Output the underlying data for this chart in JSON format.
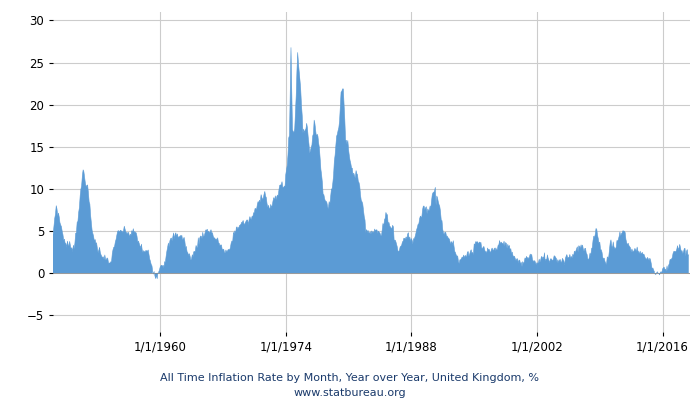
{
  "title_line1": "All Time Inflation Rate by Month, Year over Year, United Kingdom, %",
  "title_line2": "www.statbureau.org",
  "title_color": "#1a3a6b",
  "fill_color": "#5b9bd5",
  "fill_alpha": 1.0,
  "line_color": "#5b9bd5",
  "background_color": "#ffffff",
  "grid_color": "#cccccc",
  "ylim": [
    -7,
    31
  ],
  "yticks": [
    -5,
    0,
    5,
    10,
    15,
    20,
    25,
    30
  ],
  "x_start_year": 1948,
  "x_end_year": 2019,
  "xtick_years": [
    1960,
    1974,
    1988,
    2002,
    2016
  ],
  "xtick_labels": [
    "1/1/1960",
    "1/1/1974",
    "1/1/1988",
    "1/1/2002",
    "1/1/2016"
  ],
  "title_fontsize": 8.0,
  "tick_fontsize": 8.5,
  "figsize": [
    7.0,
    4.0
  ],
  "dpi": 100
}
